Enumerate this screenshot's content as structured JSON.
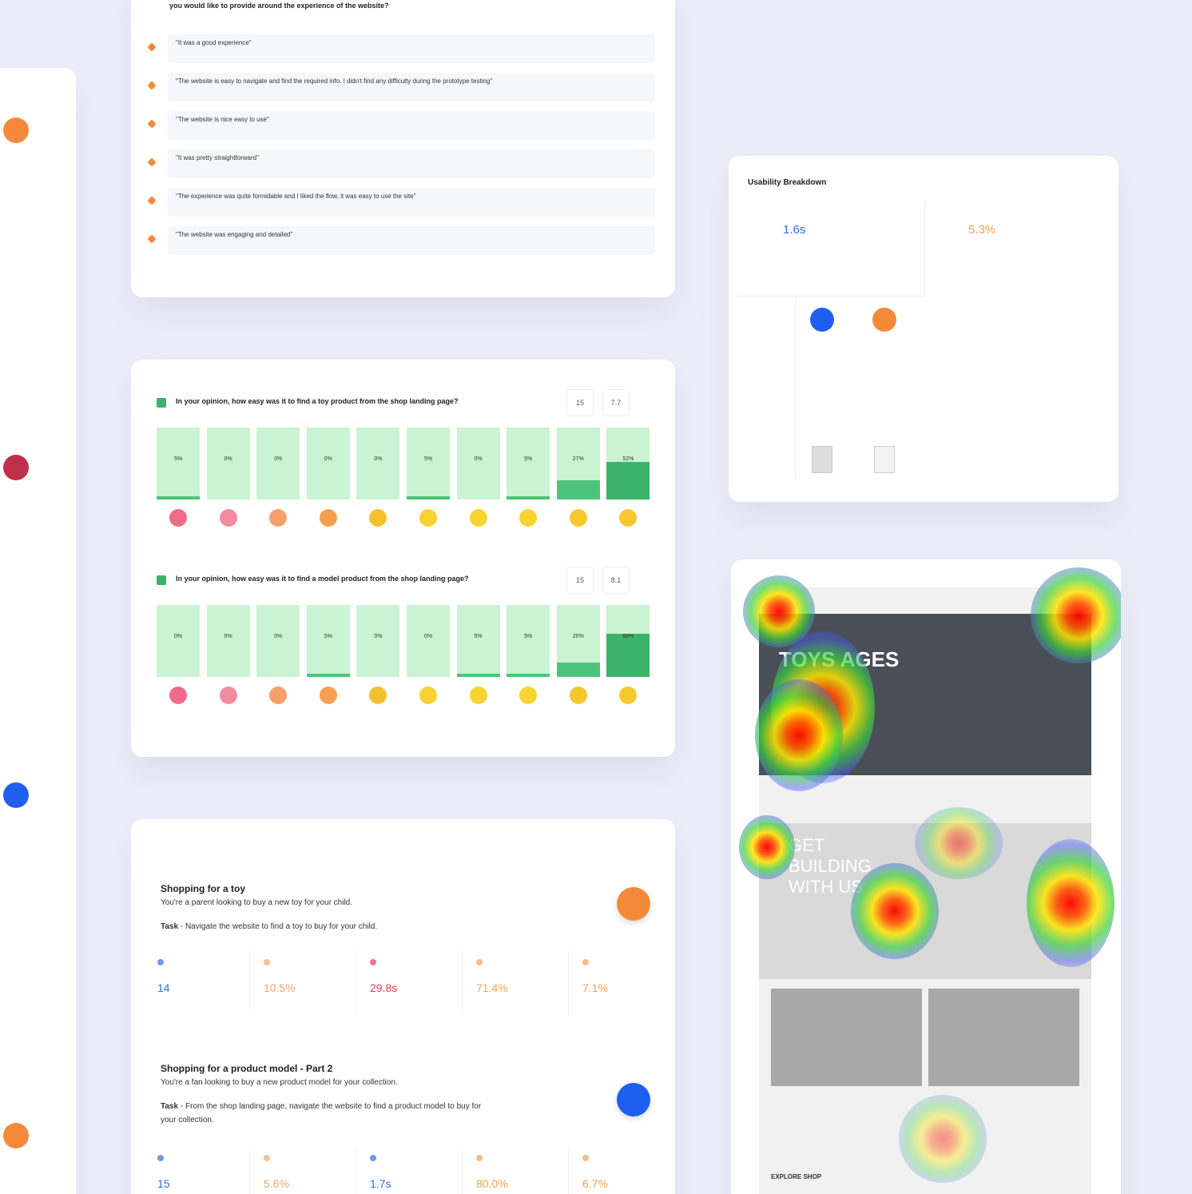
{
  "feedback": {
    "question": "you would like to provide around the experience of the website?",
    "responses": [
      "\"It was a good experience\"",
      "\"The website is easy to navigate and find the required info. I didn't find any difficulty during the prototype testing\"",
      "\"The website is nice easy to use\"",
      "\"It was pretty straightforward\"",
      "\"The experience was quite formidable and I liked the flow, it was easy to use the site\"",
      "\"The website was engaging and detailed\""
    ]
  },
  "ratings": [
    {
      "question": "In your opinion, how easy was it to find a toy product from the shop landing page?",
      "responses": "15",
      "score": "7.7",
      "values": [
        5,
        0,
        0,
        0,
        0,
        5,
        0,
        5,
        27,
        52
      ],
      "value_labels": [
        "5%",
        "0%",
        "0%",
        "0%",
        "0%",
        "5%",
        "0%",
        "5%",
        "27%",
        "52%"
      ]
    },
    {
      "question": "In your opinion, how easy was it to find a model product from the shop landing page?",
      "responses": "15",
      "score": "8.1",
      "values": [
        0,
        0,
        0,
        5,
        0,
        0,
        5,
        5,
        20,
        60
      ],
      "value_labels": [
        "0%",
        "0%",
        "0%",
        "5%",
        "0%",
        "0%",
        "5%",
        "5%",
        "20%",
        "60%"
      ]
    }
  ],
  "usability": {
    "title": "Usability Breakdown",
    "time": "1.6s",
    "misclick": "5.3%"
  },
  "tasks": [
    {
      "title": "Shopping for a toy",
      "scenario": "You're a parent looking to buy a new toy for your child.",
      "task_label": "Task",
      "task": " - Navigate the website to find a toy to buy for your child.",
      "metrics": [
        {
          "value": "14",
          "color": "#2f6fe0"
        },
        {
          "value": "10.5%",
          "color": "#f5a46a"
        },
        {
          "value": "29.8s",
          "color": "#e03c52"
        },
        {
          "value": "71.4%",
          "color": "#f5a050"
        },
        {
          "value": "7.1%",
          "color": "#f5a050"
        }
      ],
      "badge_color": "#f5893a"
    },
    {
      "title": "Shopping for a product model - Part 2",
      "scenario": "You're a fan looking to buy a new product model for your collection.",
      "task_label": "Task",
      "task": " - From the shop landing page, navigate the website to find a product model to buy for your collection.",
      "metrics": [
        {
          "value": "15",
          "color": "#2f6fe0"
        },
        {
          "value": "5.6%",
          "color": "#f5a46a"
        },
        {
          "value": "1.7s",
          "color": "#2f6fe0"
        },
        {
          "value": "80.0%",
          "color": "#f5a050"
        },
        {
          "value": "6.7%",
          "color": "#f5a050"
        }
      ],
      "badge_color": "#1f5ff0"
    }
  ],
  "heatmap": {
    "hero": "TOYS AGES",
    "banner": "GET BUILDING WITH US",
    "section": "EXPLORE SHOP"
  }
}
